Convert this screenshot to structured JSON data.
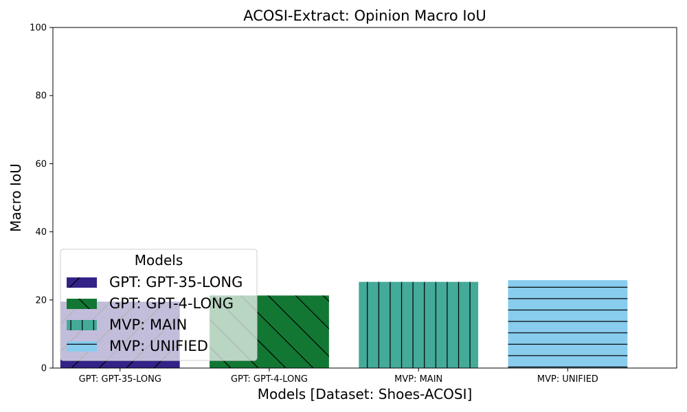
{
  "chart_data": {
    "type": "bar",
    "title": "ACOSI-Extract: Opinion Macro IoU",
    "xlabel": "Models [Dataset: Shoes-ACOSI]",
    "ylabel": "Macro IoU",
    "ylim": [
      0,
      100
    ],
    "yticks": [
      "0",
      "20",
      "40",
      "60",
      "80",
      "100"
    ],
    "categories": [
      "GPT: GPT-35-LONG",
      "GPT: GPT-4-LONG",
      "MVP: MAIN",
      "MVP: UNIFIED"
    ],
    "values": [
      19.5,
      21.3,
      25.3,
      25.8
    ],
    "colors": [
      "#332288",
      "#117733",
      "#44AA99",
      "#88CCEE"
    ],
    "hatches": [
      "diag-up",
      "diag-down",
      "vertical",
      "horizontal"
    ],
    "grid": false,
    "legend": {
      "title": "Models",
      "placement": "lower-left",
      "entries": [
        "GPT: GPT-35-LONG",
        "GPT: GPT-4-LONG",
        "MVP: MAIN",
        "MVP: UNIFIED"
      ]
    }
  }
}
